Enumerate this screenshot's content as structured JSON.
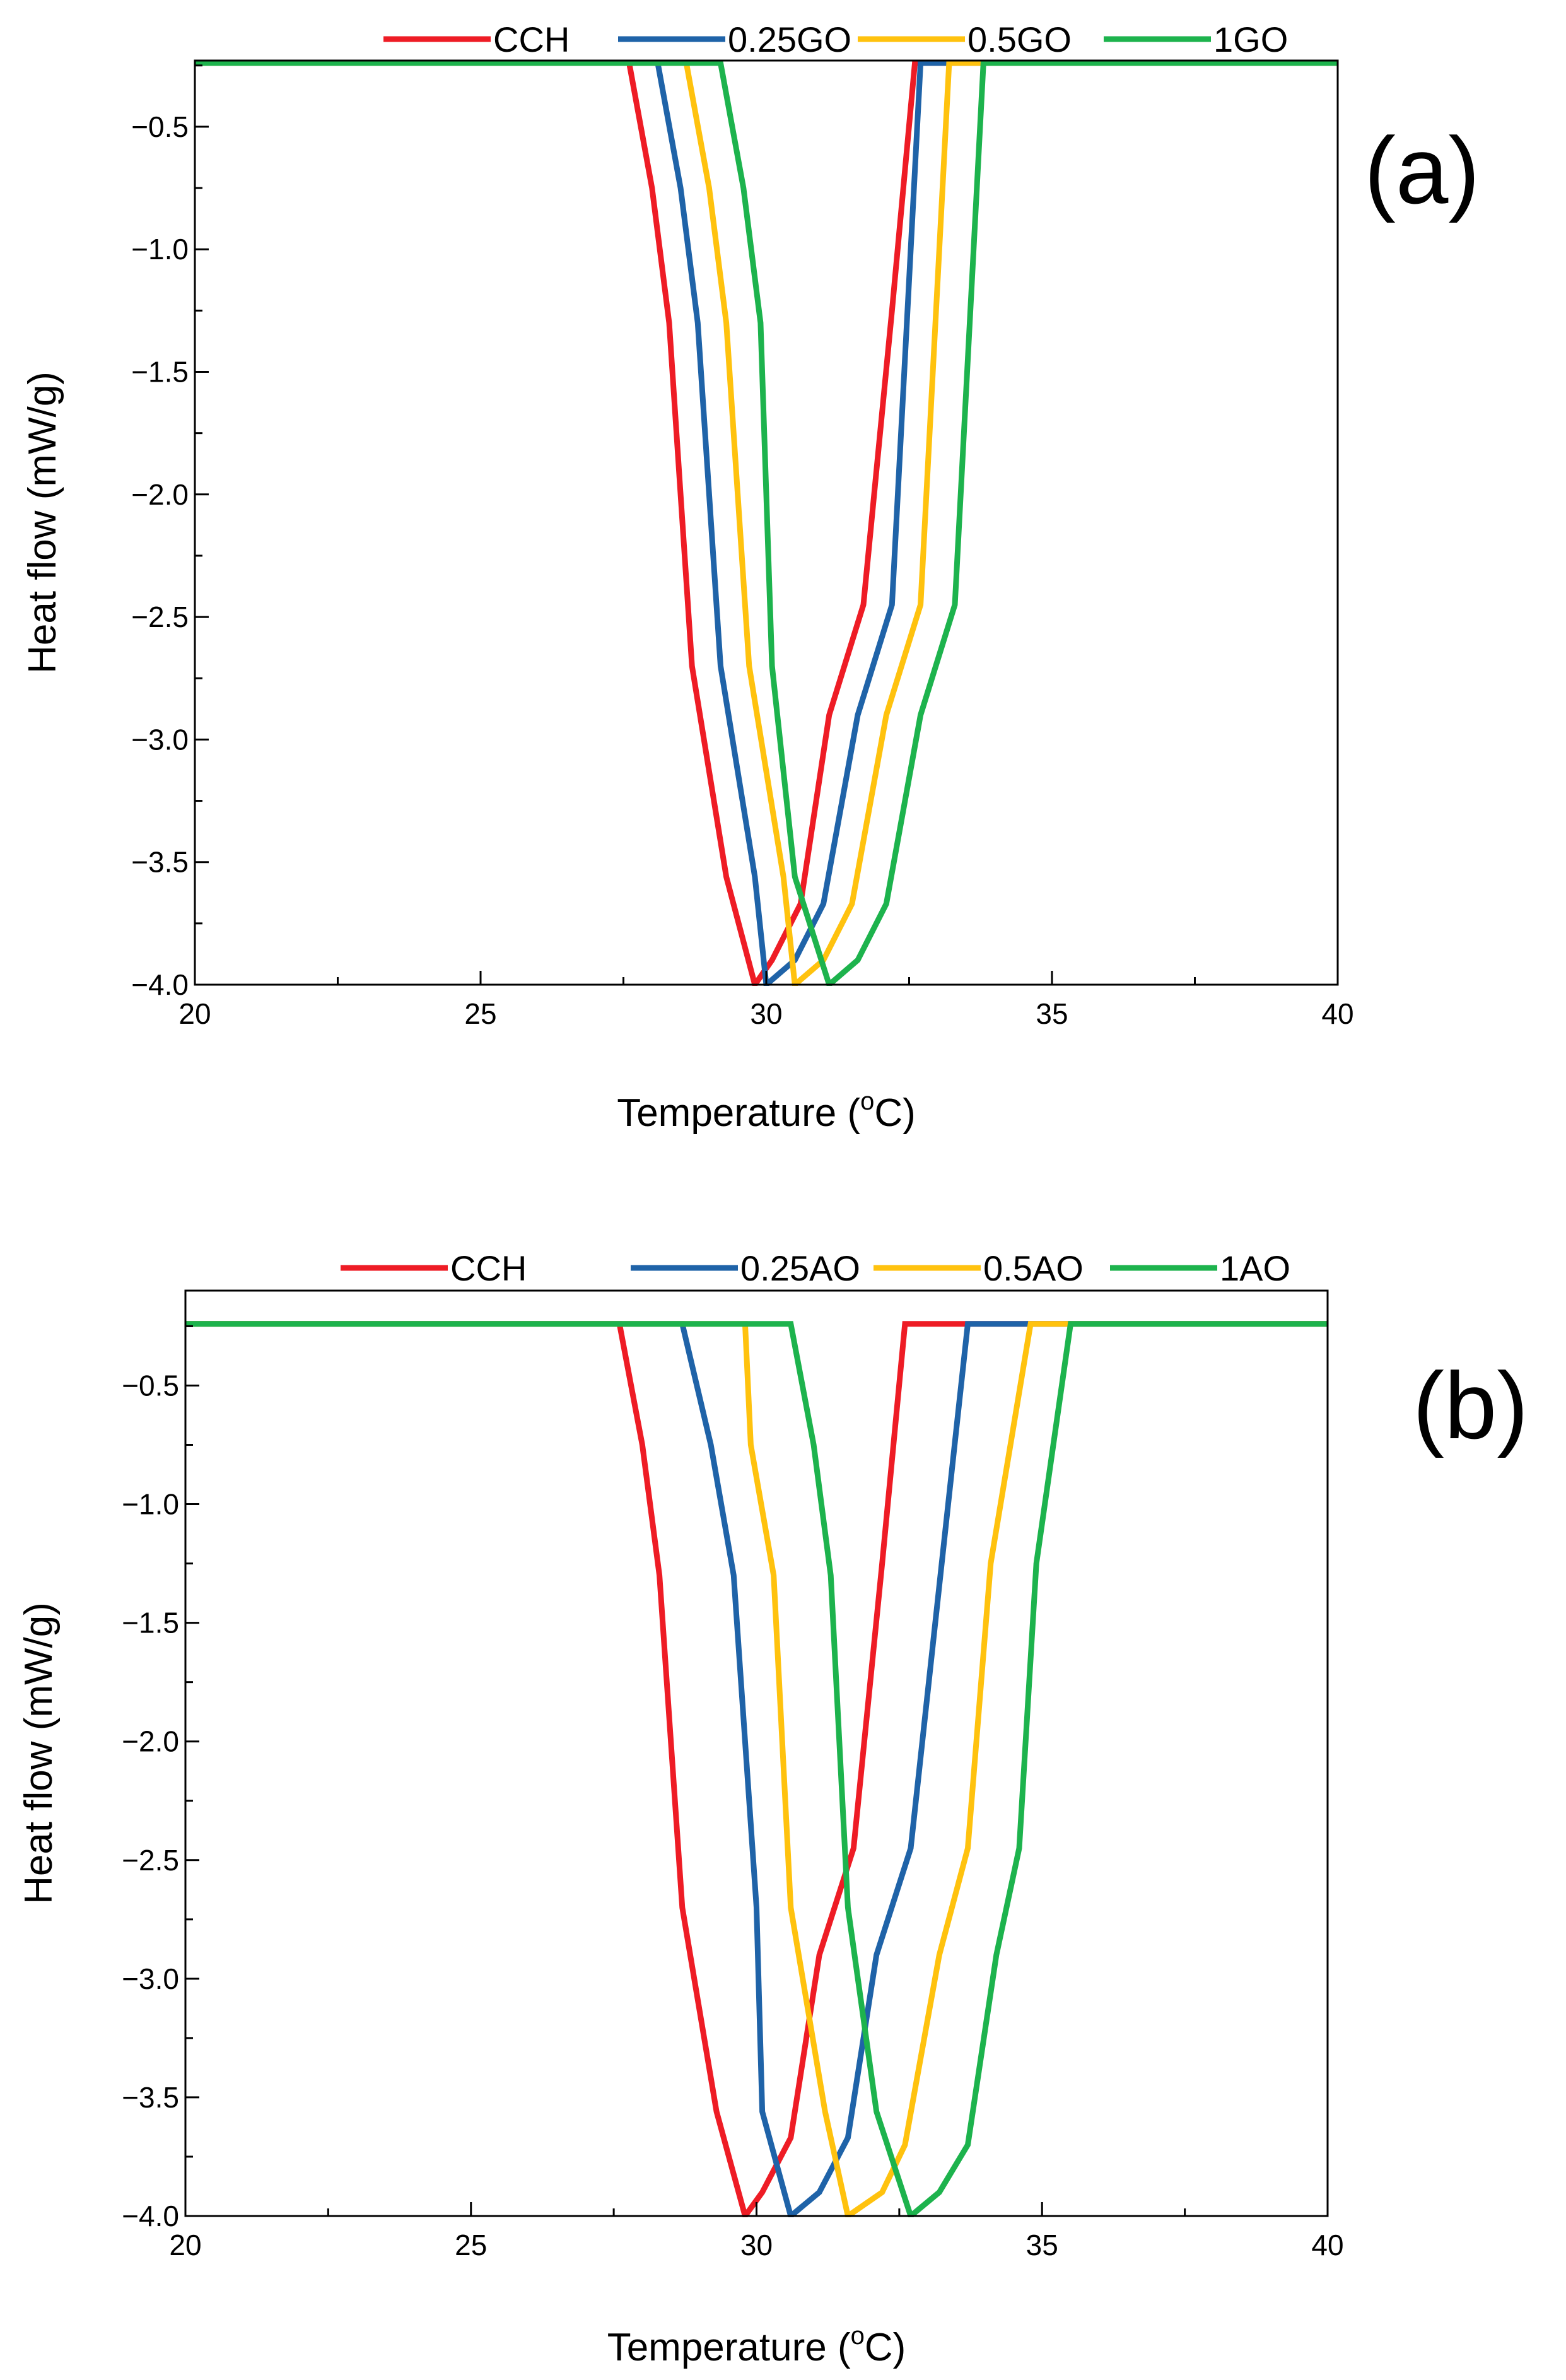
{
  "chart_data": [
    {
      "type": "line",
      "panel_label": "(a)",
      "xlabel": "Temperature (",
      "xlabel_sup": "o",
      "xlabel_unit": "C)",
      "ylabel": "Heat flow (mW/g)",
      "xlim": [
        20,
        40
      ],
      "ylim": [
        -4.0,
        -0.23
      ],
      "xticks": [
        20,
        25,
        30,
        35,
        40
      ],
      "xtick_labels": [
        "20",
        "25",
        "30",
        "35",
        "40"
      ],
      "yticks": [
        -0.5,
        -1.0,
        -1.5,
        -2.0,
        -2.5,
        -3.0,
        -3.5,
        -4.0
      ],
      "ytick_labels": [
        "−0.5",
        "−1.0",
        "−1.5",
        "−2.0",
        "−2.5",
        "−3.0",
        "−3.5",
        "−4.0"
      ],
      "legend_position": "top",
      "series": [
        {
          "name": "CCH",
          "color": "#ee1c25",
          "x": [
            20,
            27.6,
            28.0,
            28.3,
            28.7,
            29.3,
            29.8,
            30.1,
            30.6,
            31.1,
            31.7,
            32.2,
            32.6,
            40
          ],
          "y": [
            -0.24,
            -0.24,
            -0.75,
            -1.3,
            -2.7,
            -3.56,
            -4.0,
            -3.9,
            -3.67,
            -2.9,
            -2.45,
            -1.25,
            -0.24,
            -0.24
          ]
        },
        {
          "name": "0.25GO",
          "color": "#1f63a8",
          "x": [
            20,
            28.1,
            28.5,
            28.8,
            29.2,
            29.8,
            30.0,
            30.5,
            31.0,
            31.6,
            32.2,
            32.7,
            40
          ],
          "y": [
            -0.24,
            -0.24,
            -0.75,
            -1.3,
            -2.7,
            -3.56,
            -4.0,
            -3.9,
            -3.67,
            -2.9,
            -2.45,
            -0.24,
            -0.24
          ]
        },
        {
          "name": "0.5GO",
          "color": "#ffc20e",
          "x": [
            20,
            28.6,
            29.0,
            29.3,
            29.7,
            30.3,
            30.5,
            31.0,
            31.5,
            32.1,
            32.7,
            33.2,
            40
          ],
          "y": [
            -0.24,
            -0.24,
            -0.75,
            -1.3,
            -2.7,
            -3.56,
            -4.0,
            -3.9,
            -3.67,
            -2.9,
            -2.45,
            -0.24,
            -0.24
          ]
        },
        {
          "name": "1GO",
          "color": "#1db34d",
          "x": [
            20,
            29.2,
            29.6,
            29.9,
            30.1,
            30.5,
            31.1,
            31.6,
            32.1,
            32.7,
            33.3,
            33.8,
            40
          ],
          "y": [
            -0.24,
            -0.24,
            -0.75,
            -1.3,
            -2.7,
            -3.56,
            -4.0,
            -3.9,
            -3.67,
            -2.9,
            -2.45,
            -0.24,
            -0.24
          ]
        }
      ]
    },
    {
      "type": "line",
      "panel_label": "(b)",
      "xlabel": "Temperature (",
      "xlabel_sup": "o",
      "xlabel_unit": "C)",
      "ylabel": "Heat flow (mW/g)",
      "xlim": [
        20,
        40
      ],
      "ylim": [
        -4.0,
        -0.1
      ],
      "xticks": [
        20,
        25,
        30,
        35,
        40
      ],
      "xtick_labels": [
        "20",
        "25",
        "30",
        "35",
        "40"
      ],
      "yticks": [
        -0.5,
        -1.0,
        -1.5,
        -2.0,
        -2.5,
        -3.0,
        -3.5,
        -4.0
      ],
      "ytick_labels": [
        "−0.5",
        "−1.0",
        "−1.5",
        "−2.0",
        "−2.5",
        "−3.0",
        "−3.5",
        "−4.0"
      ],
      "legend_position": "top",
      "series": [
        {
          "name": "CCH",
          "color": "#ee1c25",
          "x": [
            20,
            27.6,
            28.0,
            28.3,
            28.7,
            29.3,
            29.8,
            30.1,
            30.6,
            31.1,
            31.7,
            32.2,
            32.6,
            40
          ],
          "y": [
            -0.24,
            -0.24,
            -0.75,
            -1.3,
            -2.7,
            -3.56,
            -4.0,
            -3.9,
            -3.67,
            -2.9,
            -2.45,
            -1.25,
            -0.24,
            -0.24
          ]
        },
        {
          "name": "0.25AO",
          "color": "#1f63a8",
          "x": [
            20,
            28.7,
            29.2,
            29.6,
            30.0,
            30.1,
            30.6,
            31.1,
            31.6,
            32.1,
            32.7,
            33.7,
            40
          ],
          "y": [
            -0.24,
            -0.24,
            -0.75,
            -1.3,
            -2.7,
            -3.56,
            -4.0,
            -3.9,
            -3.67,
            -2.9,
            -2.45,
            -0.24,
            -0.24
          ]
        },
        {
          "name": "0.5AO",
          "color": "#ffc20e",
          "x": [
            20,
            29.8,
            29.9,
            30.3,
            30.6,
            31.2,
            31.6,
            32.2,
            32.6,
            33.2,
            33.7,
            34.1,
            34.8,
            40
          ],
          "y": [
            -0.24,
            -0.24,
            -0.75,
            -1.3,
            -2.7,
            -3.56,
            -4.0,
            -3.9,
            -3.7,
            -2.9,
            -2.45,
            -1.25,
            -0.24,
            -0.24
          ]
        },
        {
          "name": "1AO",
          "color": "#1db34d",
          "x": [
            20,
            30.6,
            31.0,
            31.3,
            31.6,
            32.1,
            32.7,
            33.2,
            33.7,
            34.2,
            34.6,
            34.9,
            35.5,
            40
          ],
          "y": [
            -0.24,
            -0.24,
            -0.75,
            -1.3,
            -2.7,
            -3.56,
            -4.0,
            -3.9,
            -3.7,
            -2.9,
            -2.45,
            -1.25,
            -0.24,
            -0.24
          ]
        }
      ]
    }
  ]
}
